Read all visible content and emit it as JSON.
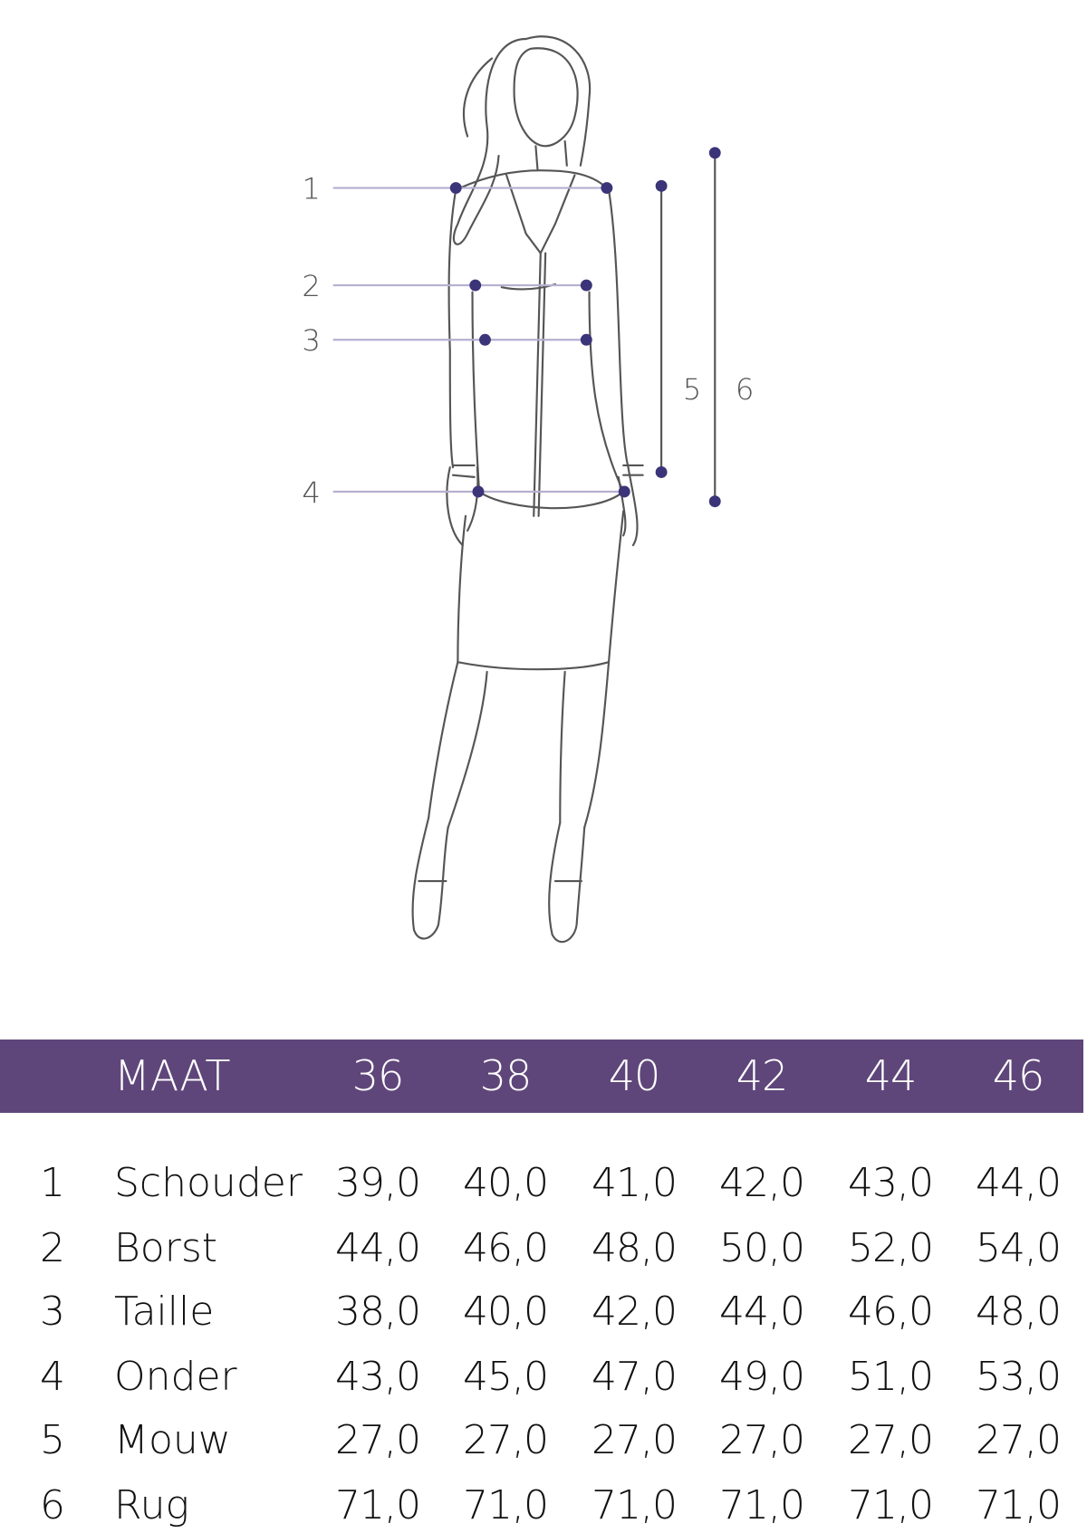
{
  "diagram": {
    "measure_labels": [
      "1",
      "2",
      "3",
      "4",
      "5",
      "6"
    ],
    "colors": {
      "dot": "#3b3478",
      "line": "#b7afd0",
      "sketch": "#555555"
    }
  },
  "table": {
    "header_color": "#5f467a",
    "header_label": "MAAT",
    "sizes": [
      "36",
      "38",
      "40",
      "42",
      "44",
      "46"
    ],
    "rows": [
      {
        "num": "1",
        "label": "Schouder",
        "values": [
          "39,0",
          "40,0",
          "41,0",
          "42,0",
          "43,0",
          "44,0"
        ]
      },
      {
        "num": "2",
        "label": "Borst",
        "values": [
          "44,0",
          "46,0",
          "48,0",
          "50,0",
          "52,0",
          "54,0"
        ]
      },
      {
        "num": "3",
        "label": "Taille",
        "values": [
          "38,0",
          "40,0",
          "42,0",
          "44,0",
          "46,0",
          "48,0"
        ]
      },
      {
        "num": "4",
        "label": "Onder",
        "values": [
          "43,0",
          "45,0",
          "47,0",
          "49,0",
          "51,0",
          "53,0"
        ]
      },
      {
        "num": "5",
        "label": "Mouw",
        "values": [
          "27,0",
          "27,0",
          "27,0",
          "27,0",
          "27,0",
          "27,0"
        ]
      },
      {
        "num": "6",
        "label": "Rug",
        "values": [
          "71,0",
          "71,0",
          "71,0",
          "71,0",
          "71,0",
          "71,0"
        ]
      }
    ]
  }
}
